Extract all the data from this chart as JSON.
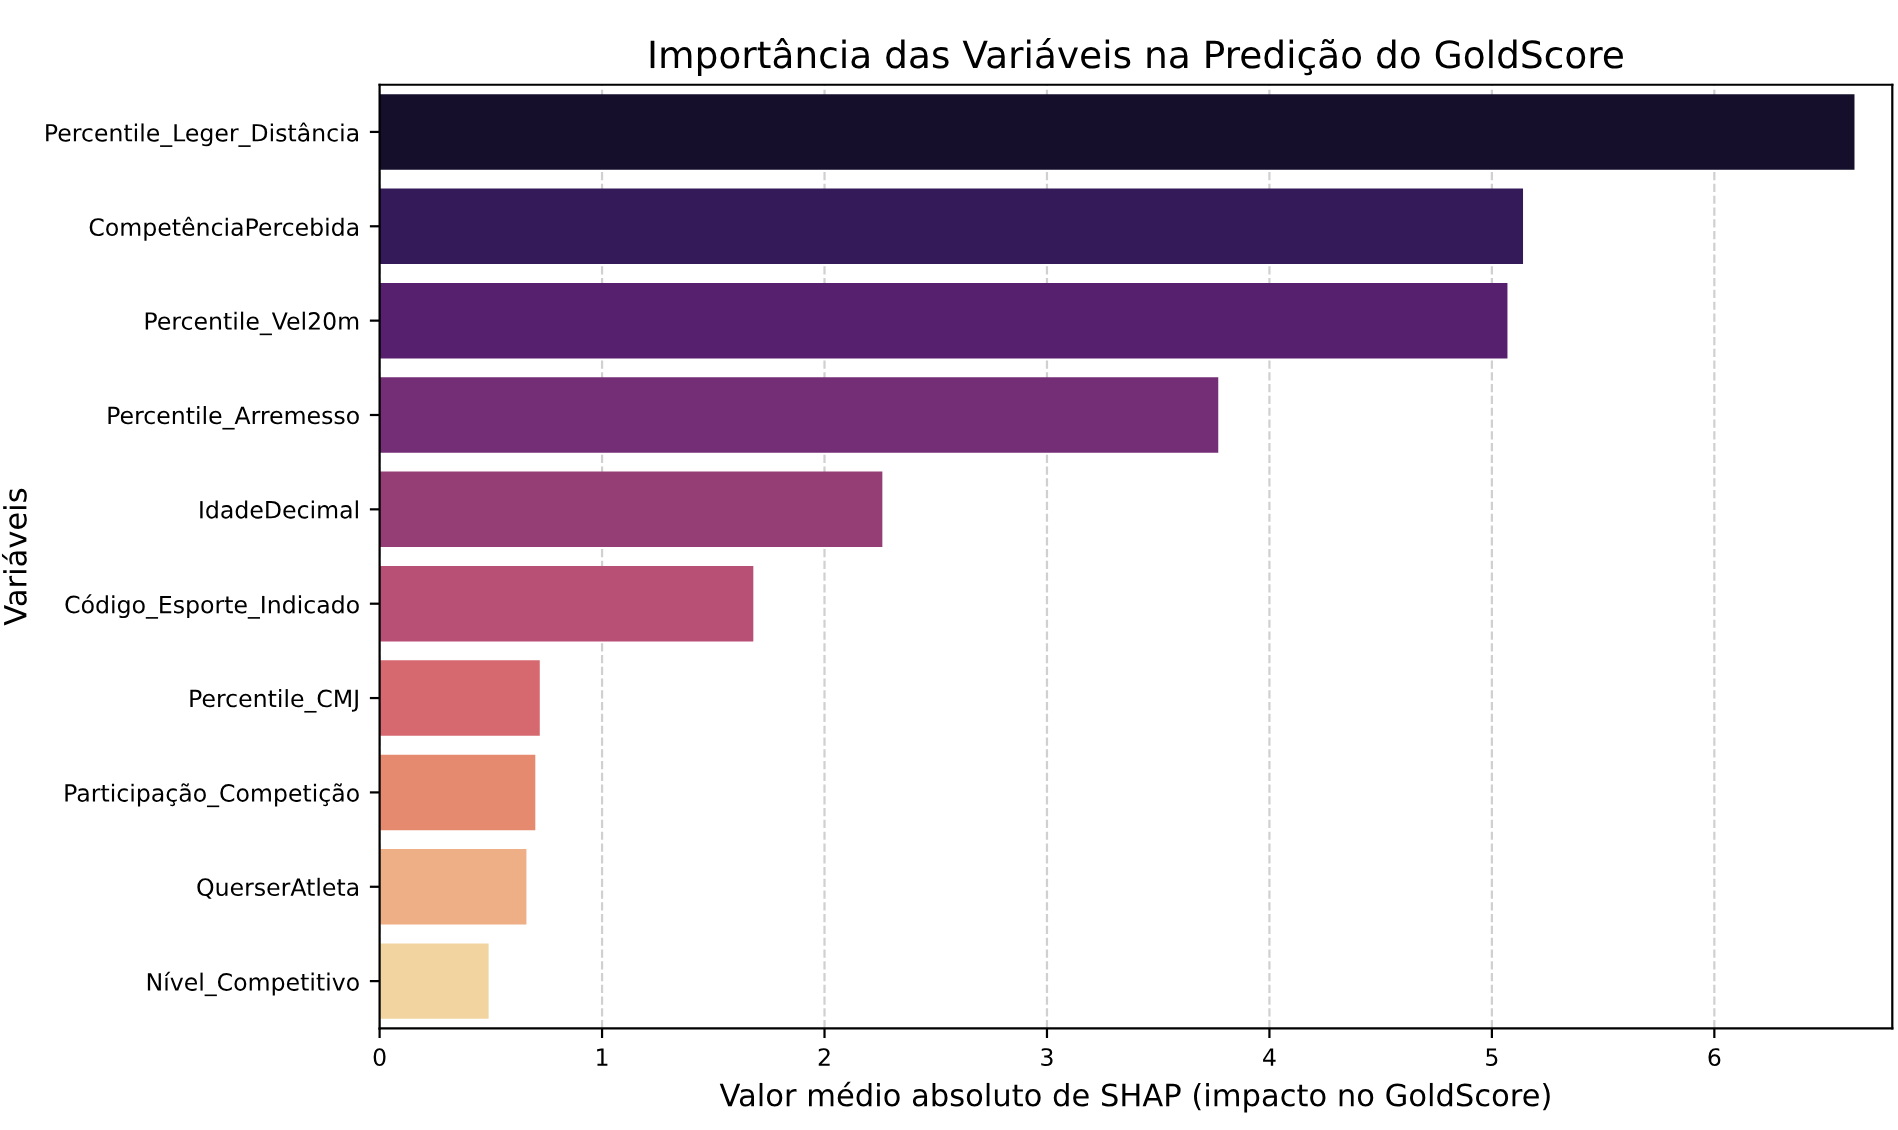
{
  "chart_data": {
    "type": "bar",
    "orientation": "horizontal",
    "title": "Importância das Variáveis na Predição do GoldScore",
    "xlabel": "Valor médio absoluto de SHAP (impacto no GoldScore)",
    "ylabel": "Variáveis",
    "categories": [
      "Percentile_Leger_Distância",
      "CompetênciaPercebida",
      "Percentile_Vel20m",
      "Percentile_Arremesso",
      "IdadeDecimal",
      "Código_Esporte_Indicado",
      "Percentile_CMJ",
      "Participação_Competição",
      "QuerserAtleta",
      "Nível_Competitivo"
    ],
    "values": [
      6.63,
      5.14,
      5.07,
      3.77,
      2.26,
      1.68,
      0.72,
      0.7,
      0.66,
      0.49
    ],
    "colors": [
      "#150f2b",
      "#351a5a",
      "#56206f",
      "#732e76",
      "#953d75",
      "#b84f74",
      "#d66870",
      "#e58a6e",
      "#eeae86",
      "#f1d49f"
    ],
    "xlim": [
      0,
      6.8
    ],
    "xticks": [
      0,
      1,
      2,
      3,
      4,
      5,
      6
    ],
    "grid": "x",
    "line_style": "dashed"
  }
}
